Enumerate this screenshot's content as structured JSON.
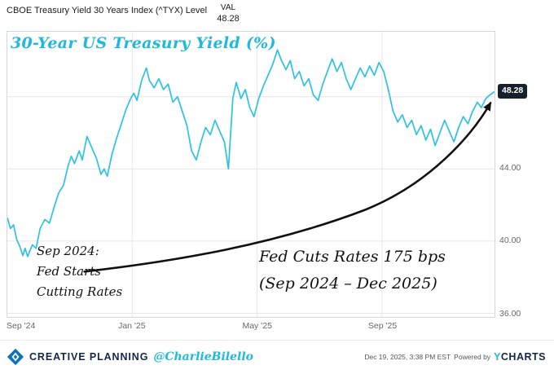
{
  "header": {
    "series_label": "CBOE Treasury Yield 30 Years Index (^TYX) Level",
    "val_label": "VAL",
    "val_value": "48.28"
  },
  "colors": {
    "accent_cyan": "#1fb9dd",
    "brand_navy": "#13264d",
    "line_cyan": "#2cc2e4",
    "badge_bg": "#17212d",
    "logo_blue": "#0d72b9"
  },
  "chart_data": {
    "type": "line",
    "title": "30-Year US Treasury Yield (%)",
    "title_color": "#1fb9dd",
    "line_color": "#2cc2e4",
    "last_point_label": "48.28",
    "last_value": 48.28,
    "x_axis": {
      "tick_labels": [
        "Sep '24",
        "Jan '25",
        "May '25",
        "Sep '25"
      ],
      "tick_positions_months": [
        0,
        4,
        8,
        12
      ],
      "gridline_months": [
        4,
        8,
        12
      ],
      "xlim_months": [
        0,
        15.6
      ]
    },
    "y_axis": {
      "tick_labels": [
        "44.00",
        "40.00",
        "36.00"
      ],
      "tick_values": [
        44,
        40,
        36
      ],
      "gridline_values": [
        48,
        44,
        40,
        36
      ],
      "ylim": [
        35.8,
        51.6
      ]
    },
    "points": [
      [
        0.0,
        41.3
      ],
      [
        0.1,
        40.7
      ],
      [
        0.2,
        40.9
      ],
      [
        0.3,
        40.1
      ],
      [
        0.4,
        39.7
      ],
      [
        0.5,
        39.2
      ],
      [
        0.57,
        39.6
      ],
      [
        0.65,
        39.15
      ],
      [
        0.8,
        39.8
      ],
      [
        0.92,
        39.6
      ],
      [
        1.05,
        40.7
      ],
      [
        1.2,
        41.2
      ],
      [
        1.35,
        41.0
      ],
      [
        1.5,
        41.9
      ],
      [
        1.65,
        42.7
      ],
      [
        1.8,
        43.1
      ],
      [
        1.95,
        44.2
      ],
      [
        2.05,
        44.7
      ],
      [
        2.15,
        44.3
      ],
      [
        2.3,
        45.0
      ],
      [
        2.4,
        44.5
      ],
      [
        2.55,
        45.8
      ],
      [
        2.7,
        45.2
      ],
      [
        2.85,
        44.6
      ],
      [
        3.0,
        43.7
      ],
      [
        3.1,
        44.0
      ],
      [
        3.2,
        43.6
      ],
      [
        3.35,
        44.8
      ],
      [
        3.5,
        45.7
      ],
      [
        3.65,
        46.5
      ],
      [
        3.8,
        47.3
      ],
      [
        3.95,
        47.9
      ],
      [
        4.05,
        48.2
      ],
      [
        4.15,
        47.8
      ],
      [
        4.3,
        48.9
      ],
      [
        4.45,
        49.6
      ],
      [
        4.55,
        48.9
      ],
      [
        4.7,
        48.5
      ],
      [
        4.85,
        49.0
      ],
      [
        5.0,
        48.4
      ],
      [
        5.15,
        48.7
      ],
      [
        5.3,
        47.7
      ],
      [
        5.45,
        48.0
      ],
      [
        5.6,
        47.2
      ],
      [
        5.75,
        46.4
      ],
      [
        5.9,
        45.0
      ],
      [
        6.05,
        44.5
      ],
      [
        6.2,
        45.5
      ],
      [
        6.35,
        46.3
      ],
      [
        6.5,
        45.9
      ],
      [
        6.65,
        46.7
      ],
      [
        6.8,
        46.1
      ],
      [
        6.95,
        45.5
      ],
      [
        7.08,
        44.0
      ],
      [
        7.22,
        47.9
      ],
      [
        7.33,
        48.8
      ],
      [
        7.48,
        47.9
      ],
      [
        7.62,
        48.4
      ],
      [
        7.76,
        47.4
      ],
      [
        7.9,
        46.9
      ],
      [
        8.05,
        47.9
      ],
      [
        8.2,
        48.6
      ],
      [
        8.35,
        49.2
      ],
      [
        8.5,
        49.8
      ],
      [
        8.65,
        50.6
      ],
      [
        8.78,
        50.0
      ],
      [
        8.92,
        49.5
      ],
      [
        9.06,
        50.0
      ],
      [
        9.2,
        49.0
      ],
      [
        9.35,
        49.4
      ],
      [
        9.5,
        48.6
      ],
      [
        9.65,
        49.0
      ],
      [
        9.8,
        48.1
      ],
      [
        9.95,
        47.8
      ],
      [
        10.1,
        48.7
      ],
      [
        10.25,
        49.4
      ],
      [
        10.4,
        50.1
      ],
      [
        10.55,
        49.4
      ],
      [
        10.7,
        49.9
      ],
      [
        10.85,
        49.0
      ],
      [
        11.0,
        48.4
      ],
      [
        11.15,
        49.0
      ],
      [
        11.3,
        49.6
      ],
      [
        11.45,
        49.1
      ],
      [
        11.6,
        49.7
      ],
      [
        11.75,
        49.2
      ],
      [
        11.9,
        49.9
      ],
      [
        12.05,
        49.4
      ],
      [
        12.2,
        48.4
      ],
      [
        12.35,
        47.2
      ],
      [
        12.5,
        46.6
      ],
      [
        12.65,
        47.0
      ],
      [
        12.8,
        46.3
      ],
      [
        12.95,
        46.7
      ],
      [
        13.1,
        45.9
      ],
      [
        13.25,
        46.4
      ],
      [
        13.4,
        45.6
      ],
      [
        13.55,
        46.2
      ],
      [
        13.7,
        45.3
      ],
      [
        13.85,
        46.0
      ],
      [
        14.0,
        46.7
      ],
      [
        14.15,
        46.1
      ],
      [
        14.3,
        45.5
      ],
      [
        14.45,
        46.3
      ],
      [
        14.6,
        46.9
      ],
      [
        14.75,
        46.5
      ],
      [
        14.9,
        47.2
      ],
      [
        15.05,
        47.7
      ],
      [
        15.18,
        47.4
      ],
      [
        15.32,
        47.9
      ],
      [
        15.45,
        48.1
      ],
      [
        15.6,
        48.28
      ]
    ]
  },
  "annotations": {
    "sep2024_line1": "Sep 2024:",
    "sep2024_line2": "Fed Starts",
    "sep2024_line3": "Cutting Rates",
    "fed_cuts_line1": "Fed Cuts Rates 175 bps",
    "fed_cuts_line2": "(Sep 2024 – Dec 2025)"
  },
  "footer": {
    "brand": "CREATIVE PLANNING",
    "handle": "@CharlieBilello",
    "timestamp": "Dec 19, 2025, 3:38 PM EST",
    "powered_by": "Powered by",
    "ycharts_y": "Y",
    "ycharts_rest": "CHARTS"
  }
}
